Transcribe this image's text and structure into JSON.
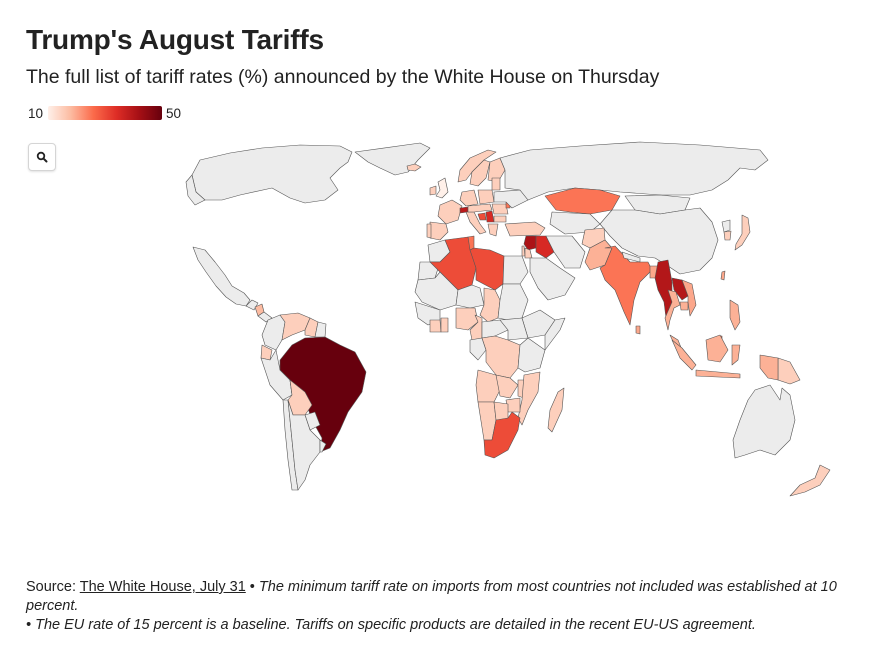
{
  "header": {
    "title": "Trump's August Tariffs",
    "subtitle": "The full list of tariff rates (%) announced by the White House on Thursday"
  },
  "legend": {
    "min_label": "10",
    "max_label": "50",
    "min_value": 10,
    "max_value": 50,
    "colors": [
      "#fff0e9",
      "#fcbba1",
      "#fb6a4a",
      "#de2d26",
      "#a50f15",
      "#67000d"
    ]
  },
  "controls": {
    "search_icon": "magnifier"
  },
  "map": {
    "no_data_color": "#ececec",
    "countries": [
      {
        "id": "brazil",
        "name": "Brazil",
        "tariff": 50
      },
      {
        "id": "switzerland",
        "name": "Switzerland",
        "tariff": 39
      },
      {
        "id": "syria",
        "name": "Syria",
        "tariff": 41
      },
      {
        "id": "iraq",
        "name": "Iraq",
        "tariff": 35
      },
      {
        "id": "myanmar",
        "name": "Myanmar",
        "tariff": 40
      },
      {
        "id": "laos",
        "name": "Laos",
        "tariff": 40
      },
      {
        "id": "serbia",
        "name": "Serbia",
        "tariff": 35
      },
      {
        "id": "algeria",
        "name": "Algeria",
        "tariff": 30
      },
      {
        "id": "libya",
        "name": "Libya",
        "tariff": 30
      },
      {
        "id": "south-africa",
        "name": "South Africa",
        "tariff": 30
      },
      {
        "id": "bosnia",
        "name": "Bosnia and Herzegovina",
        "tariff": 30
      },
      {
        "id": "india",
        "name": "India",
        "tariff": 25
      },
      {
        "id": "kazakhstan",
        "name": "Kazakhstan",
        "tariff": 25
      },
      {
        "id": "tunisia",
        "name": "Tunisia",
        "tariff": 25
      },
      {
        "id": "brunei",
        "name": "Brunei",
        "tariff": 25
      },
      {
        "id": "moldova",
        "name": "Moldova",
        "tariff": 25
      },
      {
        "id": "thailand",
        "name": "Thailand",
        "tariff": 19
      },
      {
        "id": "cambodia",
        "name": "Cambodia",
        "tariff": 19
      },
      {
        "id": "pakistan",
        "name": "Pakistan",
        "tariff": 19
      },
      {
        "id": "indonesia",
        "name": "Indonesia",
        "tariff": 19
      },
      {
        "id": "malaysia",
        "name": "Malaysia",
        "tariff": 19
      },
      {
        "id": "philippines",
        "name": "Philippines",
        "tariff": 19
      },
      {
        "id": "vietnam",
        "name": "Vietnam",
        "tariff": 20
      },
      {
        "id": "bangladesh",
        "name": "Bangladesh",
        "tariff": 20
      },
      {
        "id": "sri-lanka",
        "name": "Sri Lanka",
        "tariff": 20
      },
      {
        "id": "taiwan",
        "name": "Taiwan",
        "tariff": 20
      },
      {
        "id": "nicaragua",
        "name": "Nicaragua",
        "tariff": 18
      },
      {
        "id": "afghanistan",
        "name": "Afghanistan",
        "tariff": 15
      },
      {
        "id": "european-union",
        "name": "European Union",
        "tariff": 15
      },
      {
        "id": "turkey",
        "name": "Turkey",
        "tariff": 15
      },
      {
        "id": "norway",
        "name": "Norway",
        "tariff": 15
      },
      {
        "id": "iceland",
        "name": "Iceland",
        "tariff": 15
      },
      {
        "id": "japan",
        "name": "Japan",
        "tariff": 15
      },
      {
        "id": "south-korea",
        "name": "South Korea",
        "tariff": 15
      },
      {
        "id": "israel",
        "name": "Israel",
        "tariff": 15
      },
      {
        "id": "jordan",
        "name": "Jordan",
        "tariff": 15
      },
      {
        "id": "venezuela",
        "name": "Venezuela",
        "tariff": 15
      },
      {
        "id": "guyana",
        "name": "Guyana",
        "tariff": 15
      },
      {
        "id": "ecuador",
        "name": "Ecuador",
        "tariff": 15
      },
      {
        "id": "bolivia",
        "name": "Bolivia",
        "tariff": 15
      },
      {
        "id": "nigeria",
        "name": "Nigeria",
        "tariff": 15
      },
      {
        "id": "chad",
        "name": "Chad",
        "tariff": 15
      },
      {
        "id": "cameroon",
        "name": "Cameroon",
        "tariff": 15
      },
      {
        "id": "ghana",
        "name": "Ghana",
        "tariff": 15
      },
      {
        "id": "cote-divoire",
        "name": "Cote d'Ivoire",
        "tariff": 15
      },
      {
        "id": "drc",
        "name": "DR Congo",
        "tariff": 15
      },
      {
        "id": "angola",
        "name": "Angola",
        "tariff": 15
      },
      {
        "id": "zambia",
        "name": "Zambia",
        "tariff": 15
      },
      {
        "id": "zimbabwe",
        "name": "Zimbabwe",
        "tariff": 15
      },
      {
        "id": "mozambique",
        "name": "Mozambique",
        "tariff": 15
      },
      {
        "id": "malawi",
        "name": "Malawi",
        "tariff": 15
      },
      {
        "id": "namibia",
        "name": "Namibia",
        "tariff": 15
      },
      {
        "id": "botswana",
        "name": "Botswana",
        "tariff": 15
      },
      {
        "id": "madagascar",
        "name": "Madagascar",
        "tariff": 15
      },
      {
        "id": "papua-new-guinea",
        "name": "Papua New Guinea",
        "tariff": 15
      },
      {
        "id": "new-zealand",
        "name": "New Zealand",
        "tariff": 15
      },
      {
        "id": "uk",
        "name": "United Kingdom",
        "tariff": 10
      }
    ]
  },
  "footer": {
    "source_prefix": "Source: ",
    "source_link": "The White House, July 31",
    "bullet": " • ",
    "note1": "The minimum tariff rate on imports from most countries not included was established at 10 percent.",
    "note2": "• The EU rate of 15 percent is a baseline. Tariffs on specific products are detailed in the recent EU-US agreement."
  }
}
